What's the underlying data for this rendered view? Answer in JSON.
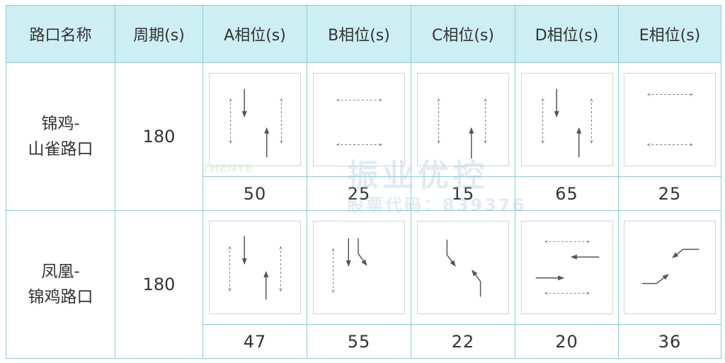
{
  "table": {
    "headers": [
      "路口名称",
      "周期(s)",
      "A相位(s)",
      "B相位(s)",
      "C相位(s)",
      "D相位(s)",
      "E相位(s)"
    ],
    "rows": [
      {
        "name_line1": "锦鸡-",
        "name_line2": "山雀路口",
        "cycle": "180",
        "phases": [
          "50",
          "25",
          "15",
          "65",
          "25"
        ]
      },
      {
        "name_line1": "凤凰-",
        "name_line2": "锦鸡路口",
        "cycle": "180",
        "phases": [
          "47",
          "55",
          "22",
          "20",
          "36"
        ]
      }
    ]
  },
  "watermark": {
    "brand": "振业优控",
    "stock": "股票代码：839376",
    "logo": "ZHENYE"
  },
  "colors": {
    "header_bg": "#cdeef2",
    "border": "#8fcbd8",
    "arrow": "#555555"
  }
}
